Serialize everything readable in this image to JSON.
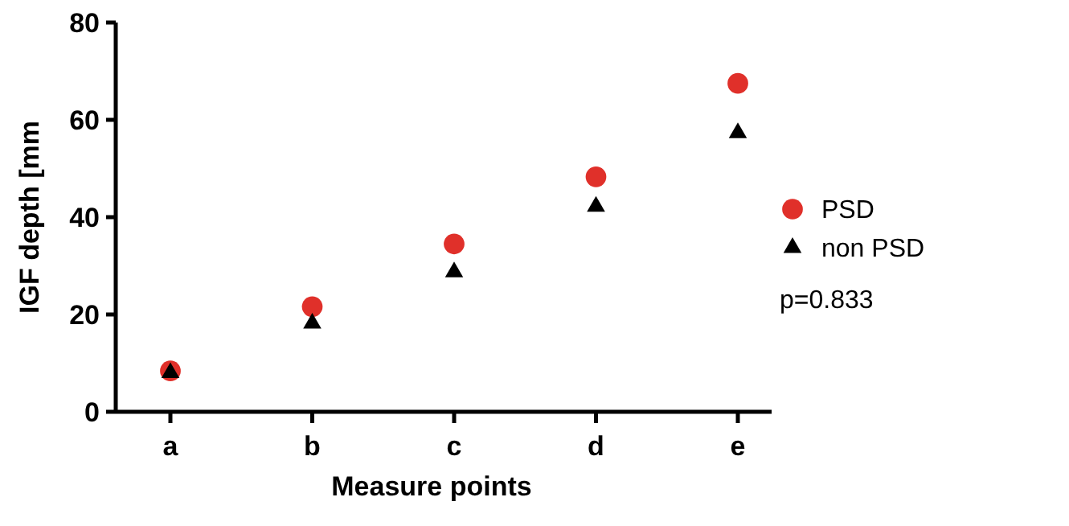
{
  "chart_data": {
    "type": "scatter",
    "xlabel": "Measure points",
    "ylabel": "IGF depth [mm",
    "categories": [
      "a",
      "b",
      "c",
      "d",
      "e"
    ],
    "series": [
      {
        "name": "PSD",
        "color": "#e0302a",
        "marker": "circle",
        "values": [
          8.4,
          21.6,
          34.5,
          48.3,
          67.5
        ]
      },
      {
        "name": "non PSD",
        "color": "#000000",
        "marker": "triangle",
        "values": [
          8,
          18.2,
          28.7,
          42.2,
          57.3
        ]
      }
    ],
    "ylim": [
      0,
      80
    ],
    "yticks": [
      0,
      20,
      40,
      60,
      80
    ],
    "legend": "right",
    "annotations": [
      "p=0.833"
    ]
  }
}
